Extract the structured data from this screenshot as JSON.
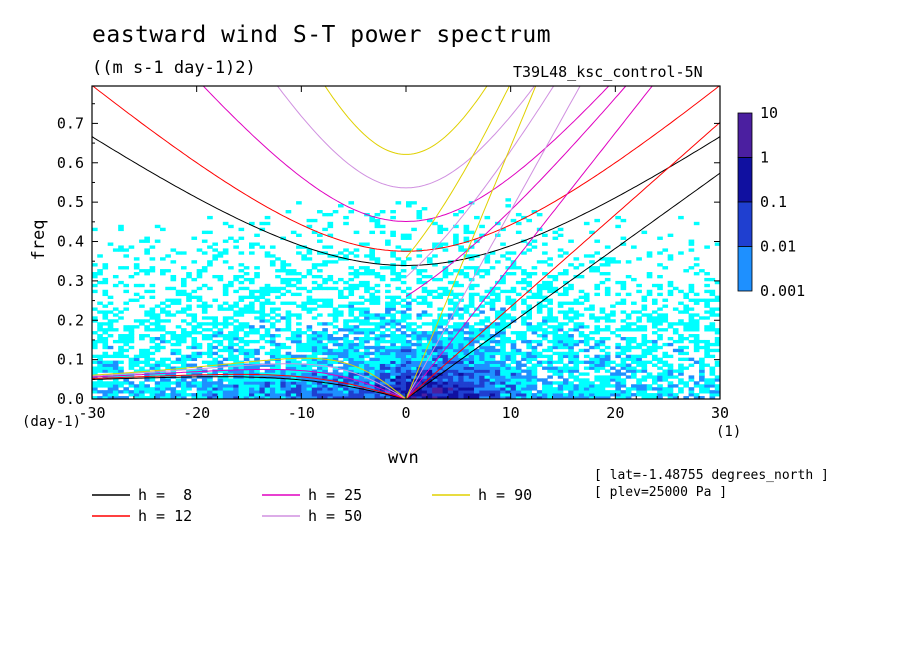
{
  "title": "eastward wind S-T power spectrum",
  "units": "((m s-1 day-1)2)",
  "run_label": "T39L48_ksc_control-5N",
  "info": [
    "[ lat=-1.48755 degrees_north ]",
    "[ plev=25000 Pa ]"
  ],
  "chart_data": {
    "type": "heatmap",
    "title": "eastward wind S-T power spectrum",
    "subtitle": "((m s-1 day-1)2)",
    "xlabel": "wvn",
    "ylabel": "freq",
    "x_unit": "(1)",
    "y_unit": "(day-1)",
    "xlim": [
      -30,
      30
    ],
    "ylim": [
      0,
      0.8
    ],
    "x_ticks": [
      -30,
      -20,
      -10,
      0,
      10,
      20,
      30
    ],
    "y_ticks": [
      0.0,
      0.1,
      0.2,
      0.3,
      0.4,
      0.5,
      0.6,
      0.7
    ],
    "x_tick_labels": [
      "-30",
      "-20",
      "-10",
      "0",
      "10",
      "20",
      "30"
    ],
    "y_tick_labels": [
      "0.0",
      "0.1",
      "0.2",
      "0.3",
      "0.4",
      "0.5",
      "0.6",
      "0.7"
    ],
    "colorbar": {
      "levels": [
        0.001,
        0.01,
        0.1,
        1,
        10
      ],
      "labels": [
        "0.001",
        "0.01",
        "0.1",
        "1",
        "10"
      ],
      "colors": [
        "#00ffff",
        "#1e90ff",
        "#1f3fd0",
        "#1010a0",
        "#4b1fa0"
      ]
    },
    "dispersion_curves": [
      {
        "label": "h =  8",
        "h": 8,
        "color": "#000000"
      },
      {
        "label": "h = 12",
        "h": 12,
        "color": "#ff0000"
      },
      {
        "label": "h = 25",
        "h": 25,
        "color": "#e000c0"
      },
      {
        "label": "h = 50",
        "h": 50,
        "color": "#d090e0"
      },
      {
        "label": "h = 90",
        "h": 90,
        "color": "#e0d000"
      }
    ]
  }
}
